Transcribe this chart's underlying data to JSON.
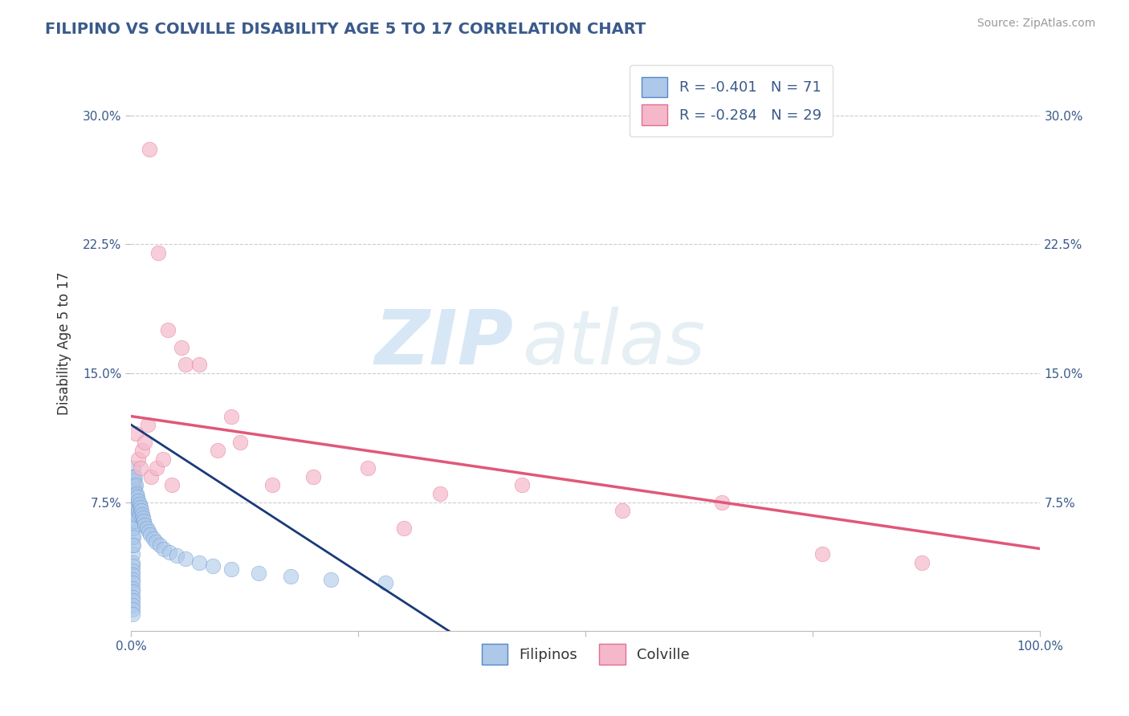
{
  "title": "FILIPINO VS COLVILLE DISABILITY AGE 5 TO 17 CORRELATION CHART",
  "source": "Source: ZipAtlas.com",
  "ylabel": "Disability Age 5 to 17",
  "xlim": [
    0.0,
    1.0
  ],
  "ylim": [
    0.0,
    0.335
  ],
  "y_ticks": [
    0.075,
    0.15,
    0.225,
    0.3
  ],
  "legend_label1": "Filipinos",
  "legend_label2": "Colville",
  "r1": -0.401,
  "n1": 71,
  "r2": -0.284,
  "n2": 29,
  "color_blue": "#adc8e8",
  "color_blue_edge": "#5588cc",
  "color_blue_line": "#1a3a7a",
  "color_pink": "#f5b8ca",
  "color_pink_edge": "#e07090",
  "color_pink_line": "#e05878",
  "color_title": "#3a5a8a",
  "color_source": "#999999",
  "watermark_zip": "ZIP",
  "watermark_atlas": "atlas",
  "background_color": "#ffffff",
  "grid_color": "#cccccc",
  "filipino_x": [
    0.001,
    0.001,
    0.001,
    0.001,
    0.001,
    0.001,
    0.001,
    0.001,
    0.001,
    0.001,
    0.001,
    0.001,
    0.001,
    0.001,
    0.001,
    0.001,
    0.001,
    0.002,
    0.002,
    0.002,
    0.002,
    0.002,
    0.002,
    0.002,
    0.002,
    0.002,
    0.002,
    0.003,
    0.003,
    0.003,
    0.003,
    0.003,
    0.004,
    0.004,
    0.004,
    0.004,
    0.005,
    0.005,
    0.005,
    0.006,
    0.006,
    0.006,
    0.007,
    0.007,
    0.008,
    0.008,
    0.009,
    0.009,
    0.01,
    0.011,
    0.012,
    0.013,
    0.014,
    0.015,
    0.017,
    0.019,
    0.021,
    0.024,
    0.027,
    0.031,
    0.036,
    0.042,
    0.05,
    0.06,
    0.075,
    0.09,
    0.11,
    0.14,
    0.175,
    0.22,
    0.28
  ],
  "filipino_y": [
    0.06,
    0.055,
    0.05,
    0.045,
    0.04,
    0.038,
    0.035,
    0.033,
    0.03,
    0.028,
    0.025,
    0.023,
    0.02,
    0.018,
    0.015,
    0.013,
    0.01,
    0.095,
    0.09,
    0.085,
    0.08,
    0.075,
    0.07,
    0.065,
    0.06,
    0.055,
    0.05,
    0.088,
    0.082,
    0.076,
    0.07,
    0.064,
    0.09,
    0.084,
    0.078,
    0.072,
    0.085,
    0.079,
    0.073,
    0.08,
    0.074,
    0.068,
    0.078,
    0.072,
    0.076,
    0.07,
    0.074,
    0.068,
    0.072,
    0.07,
    0.068,
    0.066,
    0.064,
    0.062,
    0.06,
    0.058,
    0.056,
    0.054,
    0.052,
    0.05,
    0.048,
    0.046,
    0.044,
    0.042,
    0.04,
    0.038,
    0.036,
    0.034,
    0.032,
    0.03,
    0.028
  ],
  "colville_x": [
    0.005,
    0.008,
    0.01,
    0.012,
    0.015,
    0.018,
    0.022,
    0.028,
    0.035,
    0.045,
    0.06,
    0.075,
    0.095,
    0.12,
    0.155,
    0.2,
    0.26,
    0.34,
    0.43,
    0.54,
    0.65,
    0.76,
    0.87,
    0.02,
    0.03,
    0.04,
    0.055,
    0.11,
    0.3
  ],
  "colville_y": [
    0.115,
    0.1,
    0.095,
    0.105,
    0.11,
    0.12,
    0.09,
    0.095,
    0.1,
    0.085,
    0.155,
    0.155,
    0.105,
    0.11,
    0.085,
    0.09,
    0.095,
    0.08,
    0.085,
    0.07,
    0.075,
    0.045,
    0.04,
    0.28,
    0.22,
    0.175,
    0.165,
    0.125,
    0.06
  ],
  "blue_trend_x0": 0.0,
  "blue_trend_y0": 0.12,
  "blue_trend_x1": 0.35,
  "blue_trend_y1": 0.0,
  "pink_trend_x0": 0.0,
  "pink_trend_y0": 0.125,
  "pink_trend_x1": 1.0,
  "pink_trend_y1": 0.048
}
